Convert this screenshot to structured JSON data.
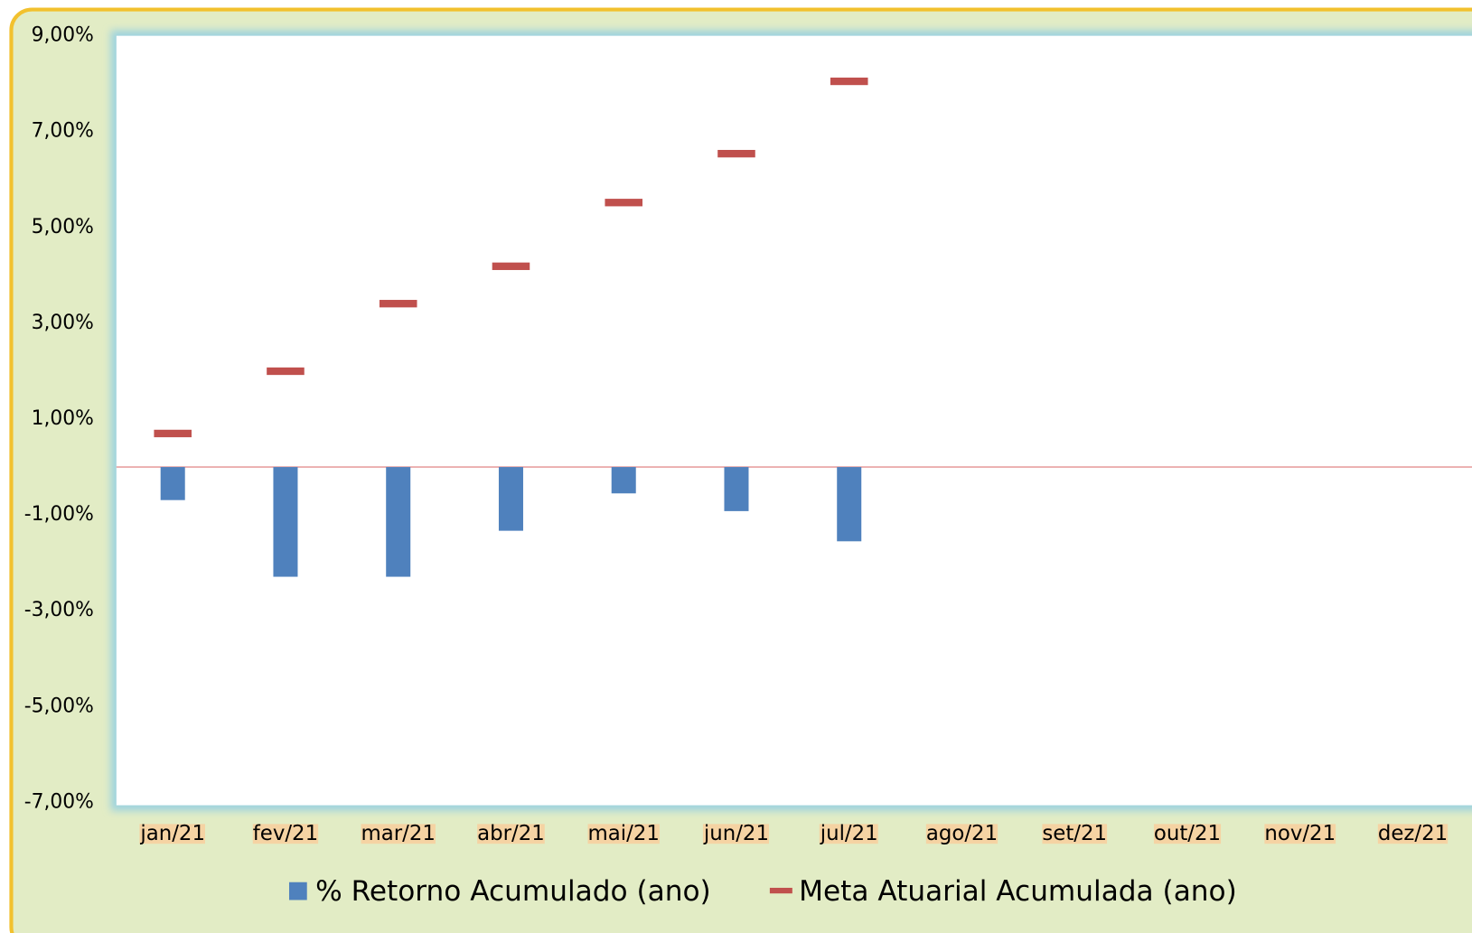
{
  "chart_data": {
    "type": "bar",
    "categories": [
      "jan/21",
      "fev/21",
      "mar/21",
      "abr/21",
      "mai/21",
      "jun/21",
      "jul/21",
      "ago/21",
      "set/21",
      "out/21",
      "nov/21",
      "dez/21"
    ],
    "series": [
      {
        "name": "% Retorno Acumulado (ano)",
        "type": "bar",
        "color": "#4f81bd",
        "values": [
          -0.69,
          -2.29,
          -2.29,
          -1.33,
          -0.55,
          -0.92,
          -1.55,
          null,
          null,
          null,
          null,
          null
        ]
      },
      {
        "name": "Meta Atuarial Acumulada (ano)",
        "type": "line",
        "marker": "dash",
        "color": "#c0504d",
        "values": [
          0.7,
          2.0,
          3.41,
          4.19,
          5.52,
          6.54,
          8.05,
          null,
          null,
          null,
          null,
          null
        ]
      }
    ],
    "ylim": [
      -7,
      9
    ],
    "yticks": [
      {
        "value": 9,
        "label": "9,00%"
      },
      {
        "value": 7,
        "label": "7,00%"
      },
      {
        "value": 5,
        "label": "5,00%"
      },
      {
        "value": 3,
        "label": "3,00%"
      },
      {
        "value": 1,
        "label": "1,00%"
      },
      {
        "value": -1,
        "label": "-1,00%"
      },
      {
        "value": -3,
        "label": "-3,00%"
      },
      {
        "value": -5,
        "label": "-5,00%"
      },
      {
        "value": -7,
        "label": "-7,00%"
      }
    ],
    "legend": "bottom"
  }
}
